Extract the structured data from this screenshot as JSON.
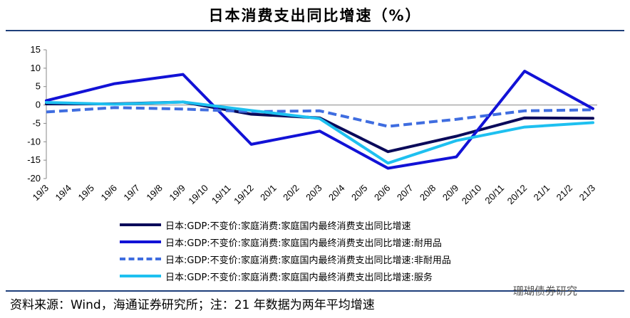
{
  "title": "日本消费支出同比增速（%）",
  "source_note": "资料来源：Wind，海通证券研究所；注：21 年数据为两年平均增速",
  "watermark": "珊瑚债券研究",
  "chart_data": {
    "type": "line",
    "title": "日本消费支出同比增速（%）",
    "xlabel": "",
    "ylabel": "",
    "ylim": [
      -20,
      15
    ],
    "yticks": [
      15,
      10,
      5,
      0,
      -5,
      -10,
      -15,
      -20
    ],
    "ytick_labels": [
      "15",
      "10",
      "5",
      "0",
      "-5",
      "-10",
      "-15",
      "-20"
    ],
    "categories": [
      "19/3",
      "19/4",
      "19/5",
      "19/6",
      "19/7",
      "19/8",
      "19/9",
      "19/10",
      "19/11",
      "19/12",
      "20/1",
      "20/2",
      "20/3",
      "20/4",
      "20/5",
      "20/6",
      "20/7",
      "20/8",
      "20/9",
      "20/10",
      "20/11",
      "20/12",
      "21/1",
      "21/2",
      "21/3"
    ],
    "grid": false,
    "legend_position": "bottom",
    "series": [
      {
        "name": "日本:GDP:不变价:家庭消费:家庭国内最终消费支出同比增速",
        "color": "#0a0a5a",
        "style": "solid",
        "x": [
          "19/3",
          "19/6",
          "19/9",
          "19/12",
          "20/3",
          "20/6",
          "20/9",
          "20/12",
          "21/3"
        ],
        "values": [
          0.3,
          0.3,
          0.8,
          -2.5,
          -3.5,
          -12.7,
          -8.5,
          -3.5,
          -3.6
        ]
      },
      {
        "name": "日本:GDP:不变价:家庭消费:家庭国内最终消费支出同比增速:耐用品",
        "color": "#1212d6",
        "style": "solid",
        "x": [
          "19/3",
          "19/6",
          "19/9",
          "19/12",
          "20/3",
          "20/6",
          "20/9",
          "20/12",
          "21/3"
        ],
        "values": [
          1.2,
          5.8,
          8.3,
          -10.7,
          -7.1,
          -17.2,
          -14.1,
          9.2,
          -1.0
        ]
      },
      {
        "name": "日本:GDP:不变价:家庭消费:家庭国内最终消费支出同比增速:非耐用品",
        "color": "#3f6de0",
        "style": "dashed",
        "x": [
          "19/3",
          "19/6",
          "19/9",
          "19/12",
          "20/3",
          "20/6",
          "20/9",
          "20/12",
          "21/3"
        ],
        "values": [
          -1.9,
          -0.7,
          -1.1,
          -1.8,
          -1.6,
          -5.8,
          -3.9,
          -1.6,
          -1.3
        ]
      },
      {
        "name": "日本:GDP:不变价:家庭消费:家庭国内最终消费支出同比增速:服务",
        "color": "#1ec0f0",
        "style": "solid",
        "x": [
          "19/3",
          "19/6",
          "19/9",
          "19/12",
          "20/3",
          "20/6",
          "20/9",
          "20/12",
          "21/3"
        ],
        "values": [
          0.7,
          0.2,
          0.8,
          -1.5,
          -3.7,
          -15.8,
          -9.7,
          -6.0,
          -4.8
        ]
      }
    ]
  }
}
